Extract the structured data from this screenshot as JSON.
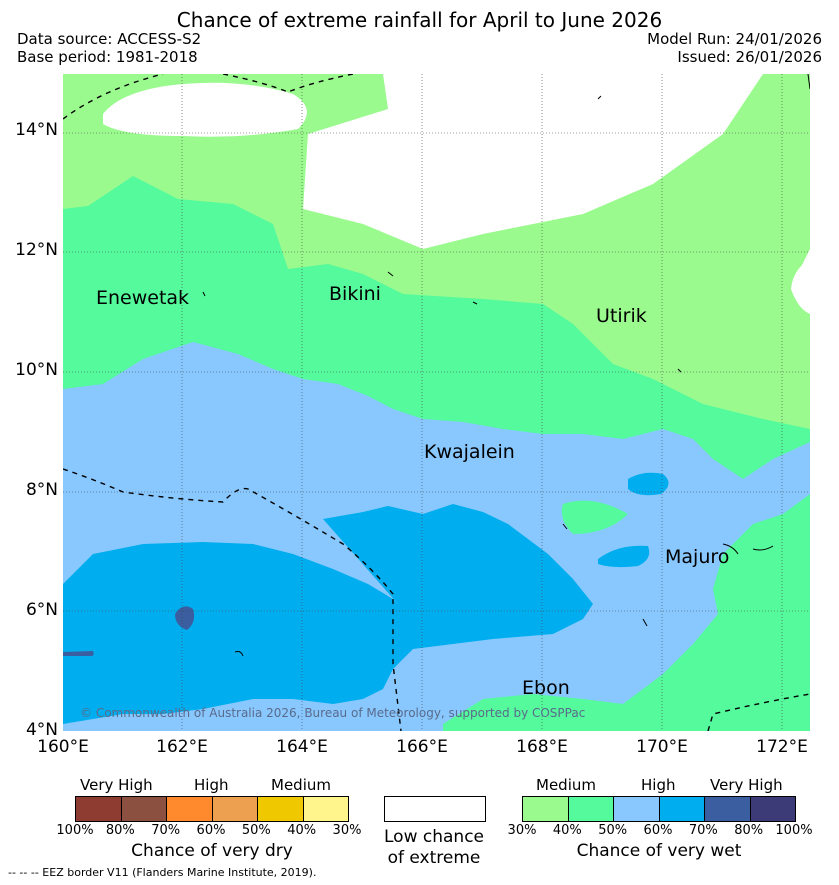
{
  "title": "Chance of extreme rainfall for April to June 2026",
  "meta": {
    "data_source": "Data source: ACCESS-S2",
    "base_period": "Base period: 1981-2018",
    "model_run": "Model Run: 24/01/2026",
    "issued": "Issued: 26/01/2026"
  },
  "map": {
    "lat_labels": [
      "14°N",
      "12°N",
      "10°N",
      "8°N",
      "6°N",
      "4°N"
    ],
    "lon_labels": [
      "160°E",
      "162°E",
      "164°E",
      "166°E",
      "168°E",
      "170°E",
      "172°E"
    ],
    "islands": [
      "Enewetak",
      "Bikini",
      "Utirik",
      "Kwajalein",
      "Majuro",
      "Ebon"
    ],
    "copyright": "© Commonwealth of Australia 2026, Bureau of Meteorology, supported by COSPPac"
  },
  "legend": {
    "dry": {
      "title": "Chance of very dry",
      "categories": [
        "Very High",
        "High",
        "Medium"
      ],
      "ticks": [
        "100%",
        "80%",
        "70%",
        "60%",
        "50%",
        "40%",
        "30%"
      ],
      "colors": [
        "#8e3b31",
        "#8c5040",
        "#ff8a2e",
        "#eca050",
        "#f0c800",
        "#fff58c"
      ]
    },
    "low": {
      "label_line1": "Low chance",
      "label_line2": "of extreme",
      "color": "#ffffff"
    },
    "wet": {
      "title": "Chance of very wet",
      "categories": [
        "Medium",
        "High",
        "Very High"
      ],
      "ticks": [
        "30%",
        "40%",
        "50%",
        "60%",
        "70%",
        "80%",
        "100%"
      ],
      "colors": [
        "#9afa8e",
        "#54fa9c",
        "#88c8ff",
        "#00aeef",
        "#3a5ea0",
        "#3d3a78"
      ]
    }
  },
  "footnote": "-- -- -- EEZ border V11 (Flanders Marine Institute, 2019)."
}
